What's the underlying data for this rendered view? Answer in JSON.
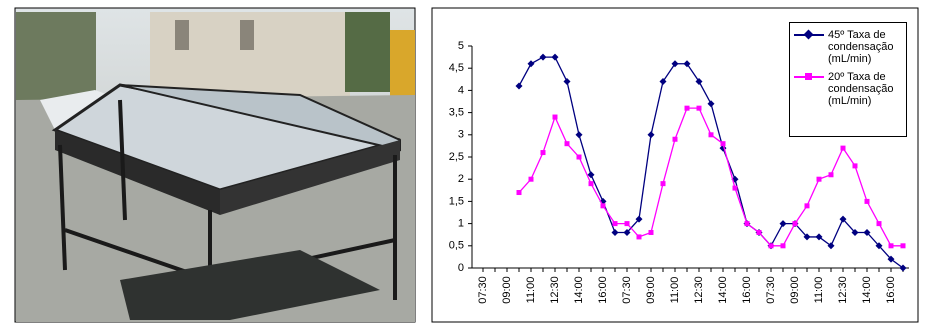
{
  "chart_data": {
    "type": "line",
    "categories": [
      "07:30",
      null,
      "09:00",
      null,
      "11:00",
      null,
      "12:30",
      null,
      "14:00",
      null,
      "16:00",
      null,
      "07:30",
      null,
      "09:00",
      null,
      "11:00",
      null,
      "12:30",
      null,
      "14:00",
      null,
      "16:00",
      null,
      "07:30",
      null,
      "09:00",
      null,
      "11:00",
      null,
      "12:30",
      null,
      "14:00",
      null,
      "16:00",
      null
    ],
    "series": [
      {
        "name": "45º Taxa de condensação (mL/min)",
        "color": "#000080",
        "marker": "diamond",
        "values": [
          null,
          null,
          null,
          4.1,
          4.6,
          4.75,
          4.75,
          4.2,
          3.0,
          2.1,
          1.5,
          0.8,
          0.8,
          1.1,
          3.0,
          4.2,
          4.6,
          4.6,
          4.2,
          3.7,
          2.7,
          2.0,
          1.0,
          0.8,
          0.5,
          1.0,
          1.0,
          0.7,
          0.7,
          0.5,
          1.1,
          0.8,
          0.8,
          0.5,
          0.2,
          0.0
        ]
      },
      {
        "name": "20º Taxa de condensação (mL/min)",
        "color": "#ff00ff",
        "marker": "square",
        "values": [
          null,
          null,
          null,
          1.7,
          2.0,
          2.6,
          3.4,
          2.8,
          2.5,
          1.9,
          1.4,
          1.0,
          1.0,
          0.7,
          0.8,
          1.9,
          2.9,
          3.6,
          3.6,
          3.0,
          2.8,
          1.8,
          1.0,
          0.8,
          0.5,
          0.5,
          1.0,
          1.4,
          2.0,
          2.1,
          2.7,
          2.3,
          1.5,
          1.0,
          0.5,
          0.5
        ]
      }
    ],
    "ylim": [
      0,
      5
    ],
    "yticks": [
      0,
      {
        "value": 0.5,
        "label": "0,5"
      },
      1,
      {
        "value": 1.5,
        "label": "1,5"
      },
      2,
      {
        "value": 2.5,
        "label": "2,5"
      },
      3,
      {
        "value": 3.5,
        "label": "3,5"
      },
      4,
      {
        "value": 4.5,
        "label": "4,5"
      },
      5
    ],
    "legend": "upper right"
  }
}
